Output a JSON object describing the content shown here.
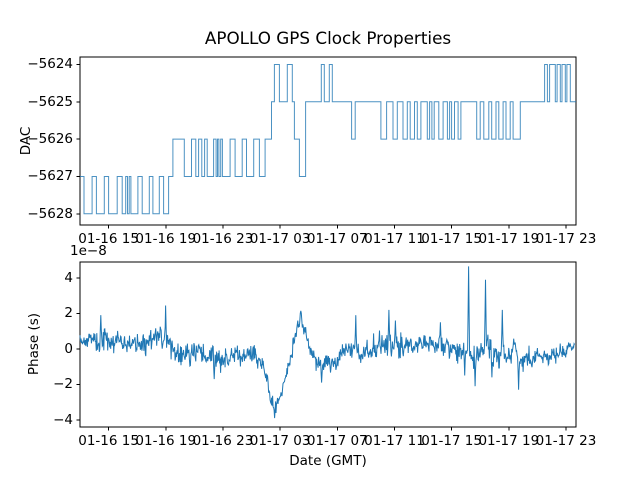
{
  "title": "APOLLO GPS Clock Properties",
  "colors": {
    "line": "#1f77b4",
    "axes": "#000000",
    "text": "#000000",
    "background": "#ffffff"
  },
  "x_axis": {
    "label": "Date (GMT)",
    "unit": "hours",
    "range_hours": [
      0,
      34.7
    ],
    "tick_hours": [
      2,
      6,
      10,
      14,
      18,
      22,
      26,
      30,
      34
    ],
    "tick_labels": [
      "01-16 15",
      "01-16 19",
      "01-16 23",
      "01-17 03",
      "01-17 07",
      "01-17 11",
      "01-17 15",
      "01-17 19",
      "01-17 23"
    ]
  },
  "chart_data": [
    {
      "type": "line",
      "subplot": "top",
      "ylabel": "DAC",
      "draw_style": "steps-post",
      "ylim": [
        -5628.3,
        -5623.8
      ],
      "yticks": [
        -5624,
        -5625,
        -5626,
        -5627,
        -5628
      ],
      "ytick_labels": [
        "−5624",
        "−5625",
        "−5626",
        "−5627",
        "−5628"
      ],
      "steps": [
        [
          0.0,
          -5627
        ],
        [
          0.28,
          -5628
        ],
        [
          0.85,
          -5627
        ],
        [
          1.15,
          -5628
        ],
        [
          1.7,
          -5627
        ],
        [
          2.0,
          -5628
        ],
        [
          2.6,
          -5627
        ],
        [
          2.95,
          -5628
        ],
        [
          3.2,
          -5627
        ],
        [
          3.32,
          -5628
        ],
        [
          3.44,
          -5627
        ],
        [
          3.56,
          -5628
        ],
        [
          4.05,
          -5627
        ],
        [
          4.35,
          -5628
        ],
        [
          4.85,
          -5627
        ],
        [
          5.1,
          -5628
        ],
        [
          5.55,
          -5627
        ],
        [
          5.85,
          -5628
        ],
        [
          6.2,
          -5627
        ],
        [
          6.5,
          -5626
        ],
        [
          7.3,
          -5627
        ],
        [
          7.8,
          -5626
        ],
        [
          8.1,
          -5627
        ],
        [
          8.3,
          -5626
        ],
        [
          8.52,
          -5627
        ],
        [
          8.72,
          -5626
        ],
        [
          8.9,
          -5627
        ],
        [
          9.35,
          -5626
        ],
        [
          9.52,
          -5627
        ],
        [
          9.62,
          -5626
        ],
        [
          9.72,
          -5627
        ],
        [
          9.84,
          -5626
        ],
        [
          9.96,
          -5627
        ],
        [
          10.5,
          -5626
        ],
        [
          10.85,
          -5627
        ],
        [
          11.35,
          -5626
        ],
        [
          11.65,
          -5627
        ],
        [
          12.15,
          -5626
        ],
        [
          12.55,
          -5627
        ],
        [
          12.95,
          -5626
        ],
        [
          13.4,
          -5625
        ],
        [
          13.6,
          -5624
        ],
        [
          13.95,
          -5625
        ],
        [
          14.5,
          -5624
        ],
        [
          14.85,
          -5625
        ],
        [
          15.0,
          -5626
        ],
        [
          15.35,
          -5627
        ],
        [
          15.78,
          -5625
        ],
        [
          16.88,
          -5624
        ],
        [
          17.09,
          -5625
        ],
        [
          17.44,
          -5624
        ],
        [
          17.65,
          -5625
        ],
        [
          19.0,
          -5626
        ],
        [
          19.25,
          -5625
        ],
        [
          21.05,
          -5626
        ],
        [
          21.45,
          -5625
        ],
        [
          21.9,
          -5626
        ],
        [
          22.2,
          -5625
        ],
        [
          22.6,
          -5626
        ],
        [
          22.9,
          -5625
        ],
        [
          23.1,
          -5626
        ],
        [
          23.4,
          -5625
        ],
        [
          23.6,
          -5626
        ],
        [
          23.85,
          -5625
        ],
        [
          24.3,
          -5626
        ],
        [
          24.46,
          -5625
        ],
        [
          24.62,
          -5626
        ],
        [
          24.78,
          -5625
        ],
        [
          25.1,
          -5626
        ],
        [
          25.4,
          -5625
        ],
        [
          25.7,
          -5626
        ],
        [
          25.86,
          -5625
        ],
        [
          26.0,
          -5626
        ],
        [
          26.2,
          -5625
        ],
        [
          26.45,
          -5626
        ],
        [
          26.65,
          -5625
        ],
        [
          27.75,
          -5626
        ],
        [
          28.0,
          -5625
        ],
        [
          28.25,
          -5626
        ],
        [
          28.6,
          -5625
        ],
        [
          28.8,
          -5626
        ],
        [
          29.1,
          -5625
        ],
        [
          29.3,
          -5626
        ],
        [
          29.6,
          -5625
        ],
        [
          29.8,
          -5626
        ],
        [
          30.1,
          -5625
        ],
        [
          30.3,
          -5626
        ],
        [
          30.8,
          -5625
        ],
        [
          32.5,
          -5624
        ],
        [
          32.7,
          -5625
        ],
        [
          32.85,
          -5624
        ],
        [
          33.25,
          -5625
        ],
        [
          33.38,
          -5624
        ],
        [
          33.6,
          -5625
        ],
        [
          33.72,
          -5624
        ],
        [
          33.95,
          -5625
        ],
        [
          34.06,
          -5624
        ],
        [
          34.3,
          -5625
        ]
      ]
    },
    {
      "type": "line",
      "subplot": "bottom",
      "ylabel": "Phase (s)",
      "offset_label": "1e−8",
      "value_scale": "1e-8",
      "ylim": [
        -4.4,
        4.9
      ],
      "yticks": [
        4,
        2,
        0,
        -2,
        -4
      ],
      "ytick_labels": [
        "4",
        "2",
        "0",
        "−2",
        "−4"
      ],
      "trend_points": [
        [
          0,
          0.5,
          0.45
        ],
        [
          1.5,
          0.4,
          0.5
        ],
        [
          3,
          0.45,
          0.45
        ],
        [
          4.5,
          0.3,
          0.5
        ],
        [
          6,
          0.25,
          0.55
        ],
        [
          7.5,
          -0.2,
          0.55
        ],
        [
          9,
          -0.6,
          0.5
        ],
        [
          10,
          -0.5,
          0.5
        ],
        [
          11,
          -0.25,
          0.45
        ],
        [
          12,
          -0.1,
          0.5
        ],
        [
          12.8,
          -0.6,
          0.45
        ],
        [
          13.3,
          -2.4,
          0.45
        ],
        [
          13.7,
          -3.3,
          0.35
        ],
        [
          14.2,
          -2.2,
          0.4
        ],
        [
          14.7,
          -0.9,
          0.35
        ],
        [
          15.1,
          0.8,
          0.3
        ],
        [
          15.45,
          1.9,
          0.25
        ],
        [
          15.9,
          0.6,
          0.35
        ],
        [
          16.5,
          -0.7,
          0.35
        ],
        [
          17.1,
          -1.0,
          0.4
        ],
        [
          18,
          -0.5,
          0.45
        ],
        [
          19,
          -0.1,
          0.5
        ],
        [
          20,
          0.1,
          0.55
        ],
        [
          21.5,
          0.2,
          0.6
        ],
        [
          23,
          0.25,
          0.5
        ],
        [
          24.5,
          0.2,
          0.45
        ],
        [
          26,
          0.2,
          0.5
        ],
        [
          27,
          0.1,
          0.5
        ],
        [
          27.6,
          -0.3,
          0.55
        ],
        [
          28.4,
          0.2,
          0.6
        ],
        [
          29.2,
          -0.3,
          0.55
        ],
        [
          30,
          -0.1,
          0.5
        ],
        [
          30.4,
          0.3,
          0.4
        ],
        [
          30.9,
          -0.9,
          0.5
        ],
        [
          31.4,
          -0.6,
          0.5
        ],
        [
          32.2,
          -0.5,
          0.45
        ],
        [
          33.2,
          -0.35,
          0.4
        ],
        [
          34,
          -0.1,
          0.3
        ],
        [
          34.65,
          0.15,
          0.25
        ]
      ],
      "spikes": [
        [
          1.45,
          1.9
        ],
        [
          6.0,
          2.45
        ],
        [
          9.4,
          -1.7
        ],
        [
          13.6,
          -3.9
        ],
        [
          15.45,
          2.15
        ],
        [
          16.9,
          -1.9
        ],
        [
          19.3,
          1.9
        ],
        [
          21.6,
          2.2
        ],
        [
          22.05,
          1.6
        ],
        [
          25.2,
          1.5
        ],
        [
          26.9,
          -1.5
        ],
        [
          27.2,
          4.65
        ],
        [
          27.65,
          -2.1
        ],
        [
          28.35,
          3.9
        ],
        [
          28.8,
          -1.6
        ],
        [
          29.55,
          2.2
        ],
        [
          30.7,
          -2.3
        ]
      ]
    }
  ]
}
